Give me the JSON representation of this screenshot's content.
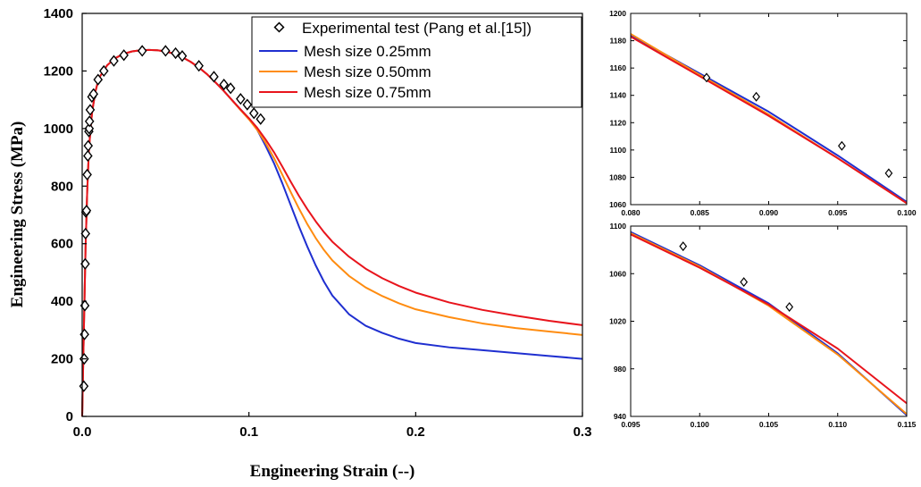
{
  "colors": {
    "mesh_025": "#1f2fd0",
    "mesh_050": "#ff8c10",
    "mesh_075": "#e8141c",
    "marker": "#000000"
  },
  "chart_data": [
    {
      "id": "main",
      "type": "line",
      "xlabel": "Engineering Strain (--)",
      "ylabel": "Engineering Stress (MPa)",
      "xlim": [
        0,
        0.3
      ],
      "ylim": [
        0,
        1400
      ],
      "xticks": [
        0.0,
        0.1,
        0.2,
        0.3
      ],
      "xtick_labels": [
        "0.0",
        "0.1",
        "0.2",
        "0.3"
      ],
      "yticks": [
        0,
        200,
        400,
        600,
        800,
        1000,
        1200,
        1400
      ],
      "ytick_labels": [
        "0",
        "200",
        "400",
        "600",
        "800",
        "1000",
        "1200",
        "1400"
      ],
      "legend_position": "top-right",
      "legend": [
        "Experimental test (Pang et al.[15])",
        "Mesh size 0.25mm",
        "Mesh size 0.50mm",
        "Mesh size 0.75mm"
      ],
      "series": [
        {
          "name": "Experimental test (Pang et al.[15])",
          "kind": "markers",
          "marker": "diamond",
          "x": [
            0.001,
            0.0012,
            0.0014,
            0.0016,
            0.0018,
            0.002,
            0.0022,
            0.0026,
            0.003,
            0.0034,
            0.0036,
            0.004,
            0.0042,
            0.0044,
            0.0048,
            0.0058,
            0.0068,
            0.0095,
            0.013,
            0.019,
            0.025,
            0.036,
            0.05,
            0.056,
            0.06,
            0.07,
            0.079,
            0.085,
            0.089,
            0.095,
            0.099,
            0.103,
            0.107
          ],
          "y": [
            105,
            200,
            285,
            385,
            530,
            635,
            710,
            715,
            840,
            905,
            940,
            990,
            1000,
            1025,
            1065,
            1110,
            1120,
            1170,
            1200,
            1235,
            1255,
            1270,
            1270,
            1262,
            1252,
            1218,
            1180,
            1153,
            1140,
            1103,
            1083,
            1053,
            1033
          ]
        },
        {
          "name": "Mesh size 0.25mm",
          "kind": "line",
          "color": "#1f2fd0",
          "x": [
            0,
            0.001,
            0.002,
            0.003,
            0.004,
            0.005,
            0.006,
            0.008,
            0.01,
            0.015,
            0.02,
            0.025,
            0.03,
            0.035,
            0.04,
            0.045,
            0.05,
            0.055,
            0.06,
            0.065,
            0.07,
            0.075,
            0.08,
            0.085,
            0.09,
            0.095,
            0.1,
            0.105,
            0.11,
            0.115,
            0.12,
            0.125,
            0.13,
            0.135,
            0.14,
            0.145,
            0.15,
            0.16,
            0.17,
            0.18,
            0.19,
            0.2,
            0.22,
            0.24,
            0.26,
            0.28,
            0.3
          ],
          "y": [
            0,
            300,
            580,
            780,
            920,
            1000,
            1060,
            1130,
            1175,
            1220,
            1245,
            1260,
            1268,
            1272,
            1273,
            1272,
            1268,
            1260,
            1248,
            1232,
            1212,
            1188,
            1160,
            1130,
            1098,
            1066,
            1035,
            995,
            940,
            880,
            810,
            735,
            660,
            590,
            525,
            468,
            420,
            355,
            315,
            290,
            270,
            255,
            240,
            230,
            220,
            210,
            200
          ]
        },
        {
          "name": "Mesh size 0.50mm",
          "kind": "line",
          "color": "#ff8c10",
          "x": [
            0,
            0.001,
            0.002,
            0.003,
            0.004,
            0.005,
            0.006,
            0.008,
            0.01,
            0.015,
            0.02,
            0.025,
            0.03,
            0.035,
            0.04,
            0.045,
            0.05,
            0.055,
            0.06,
            0.065,
            0.07,
            0.075,
            0.08,
            0.085,
            0.09,
            0.095,
            0.1,
            0.105,
            0.11,
            0.115,
            0.12,
            0.125,
            0.13,
            0.135,
            0.14,
            0.145,
            0.15,
            0.16,
            0.17,
            0.18,
            0.19,
            0.2,
            0.22,
            0.24,
            0.26,
            0.28,
            0.3
          ],
          "y": [
            0,
            300,
            580,
            780,
            920,
            1000,
            1060,
            1130,
            1175,
            1220,
            1245,
            1260,
            1268,
            1272,
            1273,
            1272,
            1268,
            1260,
            1248,
            1232,
            1212,
            1188,
            1160,
            1130,
            1097,
            1064,
            1032,
            995,
            950,
            898,
            840,
            780,
            722,
            668,
            620,
            578,
            542,
            488,
            448,
            418,
            393,
            372,
            345,
            323,
            307,
            295,
            283
          ]
        },
        {
          "name": "Mesh size 0.75mm",
          "kind": "line",
          "color": "#e8141c",
          "x": [
            0,
            0.001,
            0.002,
            0.003,
            0.004,
            0.005,
            0.006,
            0.008,
            0.01,
            0.015,
            0.02,
            0.025,
            0.03,
            0.035,
            0.04,
            0.045,
            0.05,
            0.055,
            0.06,
            0.065,
            0.07,
            0.075,
            0.08,
            0.085,
            0.09,
            0.095,
            0.1,
            0.105,
            0.11,
            0.115,
            0.12,
            0.125,
            0.13,
            0.135,
            0.14,
            0.145,
            0.15,
            0.16,
            0.17,
            0.18,
            0.19,
            0.2,
            0.22,
            0.24,
            0.26,
            0.28,
            0.3
          ],
          "y": [
            0,
            300,
            580,
            780,
            920,
            1000,
            1060,
            1130,
            1175,
            1220,
            1245,
            1260,
            1268,
            1272,
            1273,
            1272,
            1268,
            1260,
            1248,
            1232,
            1212,
            1188,
            1160,
            1130,
            1098,
            1066,
            1036,
            1002,
            962,
            918,
            868,
            816,
            766,
            720,
            678,
            640,
            607,
            555,
            513,
            480,
            453,
            430,
            396,
            370,
            350,
            332,
            317
          ]
        }
      ]
    },
    {
      "id": "zoom_top",
      "type": "line",
      "xlim": [
        0.08,
        0.1
      ],
      "ylim": [
        1060,
        1200
      ],
      "xticks": [
        0.08,
        0.085,
        0.09,
        0.095,
        0.1
      ],
      "xtick_labels": [
        "0.080",
        "0.085",
        "0.090",
        "0.095",
        "0.100"
      ],
      "yticks": [
        1060,
        1080,
        1100,
        1120,
        1140,
        1160,
        1180,
        1200
      ],
      "ytick_labels": [
        "1060",
        "1080",
        "1100",
        "1120",
        "1140",
        "1160",
        "1180",
        "1200"
      ],
      "series": [
        {
          "name": "Experimental test (Pang et al.[15])",
          "kind": "markers",
          "x": [
            0.0855,
            0.0891,
            0.0953,
            0.0987
          ],
          "y": [
            1153,
            1139,
            1103,
            1083
          ]
        },
        {
          "name": "Mesh size 0.25mm",
          "kind": "line",
          "color": "#1f2fd0",
          "x": [
            0.08,
            0.085,
            0.09,
            0.095,
            0.1
          ],
          "y": [
            1184,
            1156,
            1128,
            1096,
            1062
          ]
        },
        {
          "name": "Mesh size 0.50mm",
          "kind": "line",
          "color": "#ff8c10",
          "x": [
            0.08,
            0.085,
            0.09,
            0.095,
            0.1
          ],
          "y": [
            1185,
            1155,
            1126,
            1094,
            1061
          ]
        },
        {
          "name": "Mesh size 0.75mm",
          "kind": "line",
          "color": "#e8141c",
          "x": [
            0.08,
            0.085,
            0.09,
            0.095,
            0.1
          ],
          "y": [
            1183,
            1154,
            1125,
            1094,
            1061
          ]
        }
      ]
    },
    {
      "id": "zoom_bottom",
      "type": "line",
      "xlim": [
        0.095,
        0.115
      ],
      "ylim": [
        940,
        1100
      ],
      "xticks": [
        0.095,
        0.1,
        0.105,
        0.11,
        0.115
      ],
      "xtick_labels": [
        "0.095",
        "0.100",
        "0.105",
        "0.110",
        "0.115"
      ],
      "yticks": [
        940,
        980,
        1020,
        1060,
        1100
      ],
      "ytick_labels": [
        "940",
        "980",
        "1020",
        "1060",
        "1100"
      ],
      "series": [
        {
          "name": "Experimental test (Pang et al.[15])",
          "kind": "markers",
          "x": [
            0.0988,
            0.1032,
            0.1065
          ],
          "y": [
            1083,
            1053,
            1032
          ]
        },
        {
          "name": "Mesh size 0.25mm",
          "kind": "line",
          "color": "#1f2fd0",
          "x": [
            0.095,
            0.1,
            0.105,
            0.11,
            0.115
          ],
          "y": [
            1095,
            1067,
            1035,
            993,
            941
          ]
        },
        {
          "name": "Mesh size 0.50mm",
          "kind": "line",
          "color": "#ff8c10",
          "x": [
            0.095,
            0.1,
            0.105,
            0.11,
            0.115
          ],
          "y": [
            1094,
            1066,
            1033,
            992,
            942
          ]
        },
        {
          "name": "Mesh size 0.75mm",
          "kind": "line",
          "color": "#e8141c",
          "x": [
            0.095,
            0.1,
            0.105,
            0.11,
            0.115
          ],
          "y": [
            1093,
            1065,
            1034,
            997,
            951
          ]
        }
      ]
    }
  ]
}
